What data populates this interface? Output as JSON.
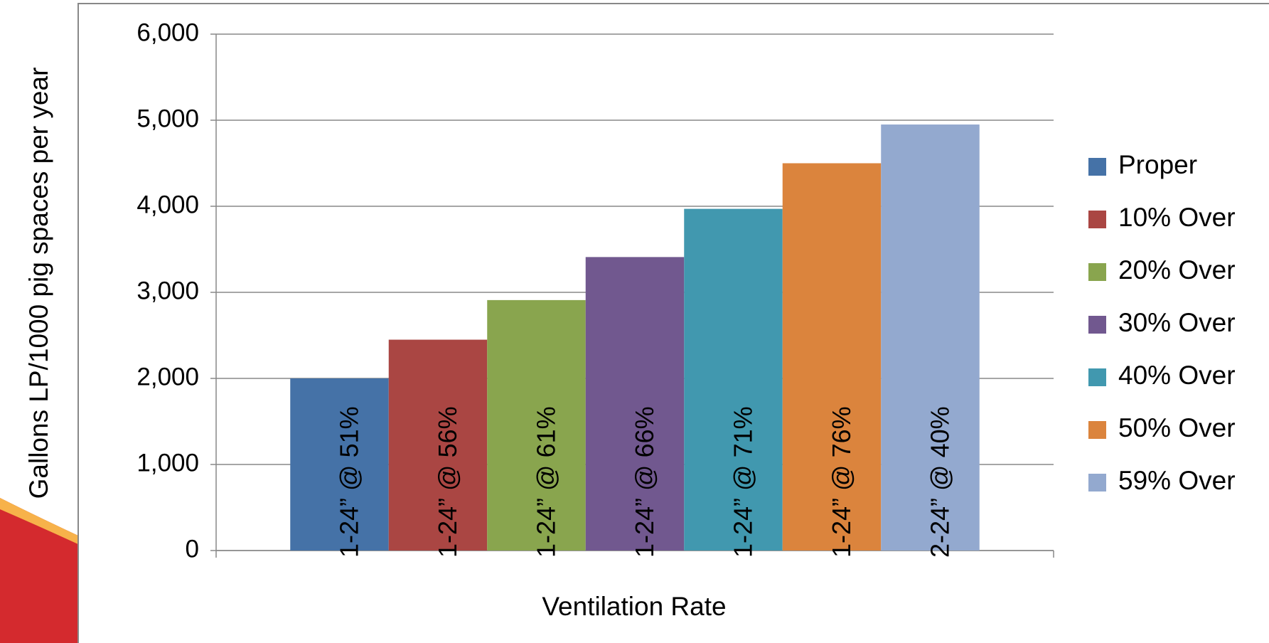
{
  "chart_data": {
    "type": "bar",
    "x_label": "Ventilation Rate",
    "y_label": "Gallons LP/1000 pig spaces per year",
    "categories": [
      null
    ],
    "series": [
      {
        "name": "Proper",
        "color": "#4572a7",
        "values": [
          2000
        ],
        "annotation": "1-24” @ 51%"
      },
      {
        "name": "10% Over",
        "color": "#aa4643",
        "values": [
          2450
        ],
        "annotation": "1-24” @ 56%"
      },
      {
        "name": "20% Over",
        "color": "#89a54e",
        "values": [
          2910
        ],
        "annotation": "1-24” @ 61%"
      },
      {
        "name": "30% Over",
        "color": "#71588f",
        "values": [
          3410
        ],
        "annotation": "1-24” @ 66%"
      },
      {
        "name": "40% Over",
        "color": "#4198af",
        "values": [
          3970
        ],
        "annotation": "1-24” @ 71%"
      },
      {
        "name": "50% Over",
        "color": "#db843d",
        "values": [
          4500
        ],
        "annotation": "1-24” @ 76%"
      },
      {
        "name": "59% Over",
        "color": "#93a9cf",
        "values": [
          4950
        ],
        "annotation": "2-24” @ 40%"
      }
    ],
    "ylim": [
      0,
      6000
    ],
    "yticks": [
      0,
      {
        "value": 1000,
        "label": "1,000"
      },
      {
        "value": 2000,
        "label": "2,000"
      },
      {
        "value": 3000,
        "label": "3,000"
      },
      {
        "value": 4000,
        "label": "4,000"
      },
      {
        "value": 5000,
        "label": "5,000"
      },
      {
        "value": 6000,
        "label": "6,000"
      }
    ],
    "grid": true,
    "legend": "right"
  }
}
